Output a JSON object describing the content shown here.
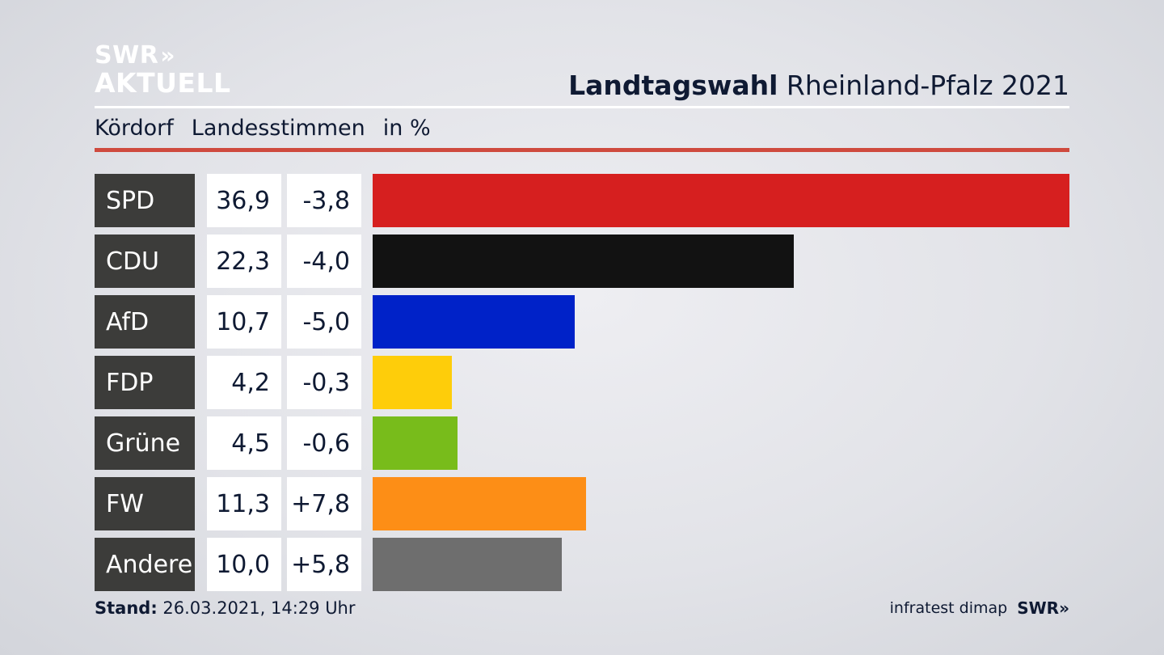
{
  "logo": {
    "line1": "SWR",
    "line2": "AKTUELL",
    "chevron": "»"
  },
  "header": {
    "title_bold": "Landtagswahl",
    "title_rest": "Rheinland-Pfalz 2021"
  },
  "subheader": {
    "place": "Kördorf",
    "type": "Landesstimmen",
    "unit": "in %"
  },
  "footer": {
    "stand_label": "Stand:",
    "stand_value": "26.03.2021, 14:29 Uhr",
    "source": "infratest dimap",
    "brand": "SWR",
    "brand_chevron": "»"
  },
  "chart_data": {
    "type": "bar",
    "orientation": "horizontal",
    "categories": [
      "SPD",
      "CDU",
      "AfD",
      "FDP",
      "Grüne",
      "FW",
      "Andere"
    ],
    "values": [
      36.9,
      22.3,
      10.7,
      4.2,
      4.5,
      11.3,
      10.0
    ],
    "value_labels": [
      "36,9",
      "22,3",
      "10,7",
      "4,2",
      "4,5",
      "11,3",
      "10,0"
    ],
    "changes": [
      -3.8,
      -4.0,
      -5.0,
      -0.3,
      -0.6,
      7.8,
      5.8
    ],
    "change_labels": [
      "-3,8",
      "-4,0",
      "-5,0",
      "-0,3",
      "-0,6",
      "+7,8",
      "+5,8"
    ],
    "colors": [
      "#d61f1f",
      "#121212",
      "#0022c8",
      "#fecd0a",
      "#78bc1b",
      "#fd8e16",
      "#6e6e6e"
    ],
    "xlim": [
      0,
      36.9
    ]
  }
}
